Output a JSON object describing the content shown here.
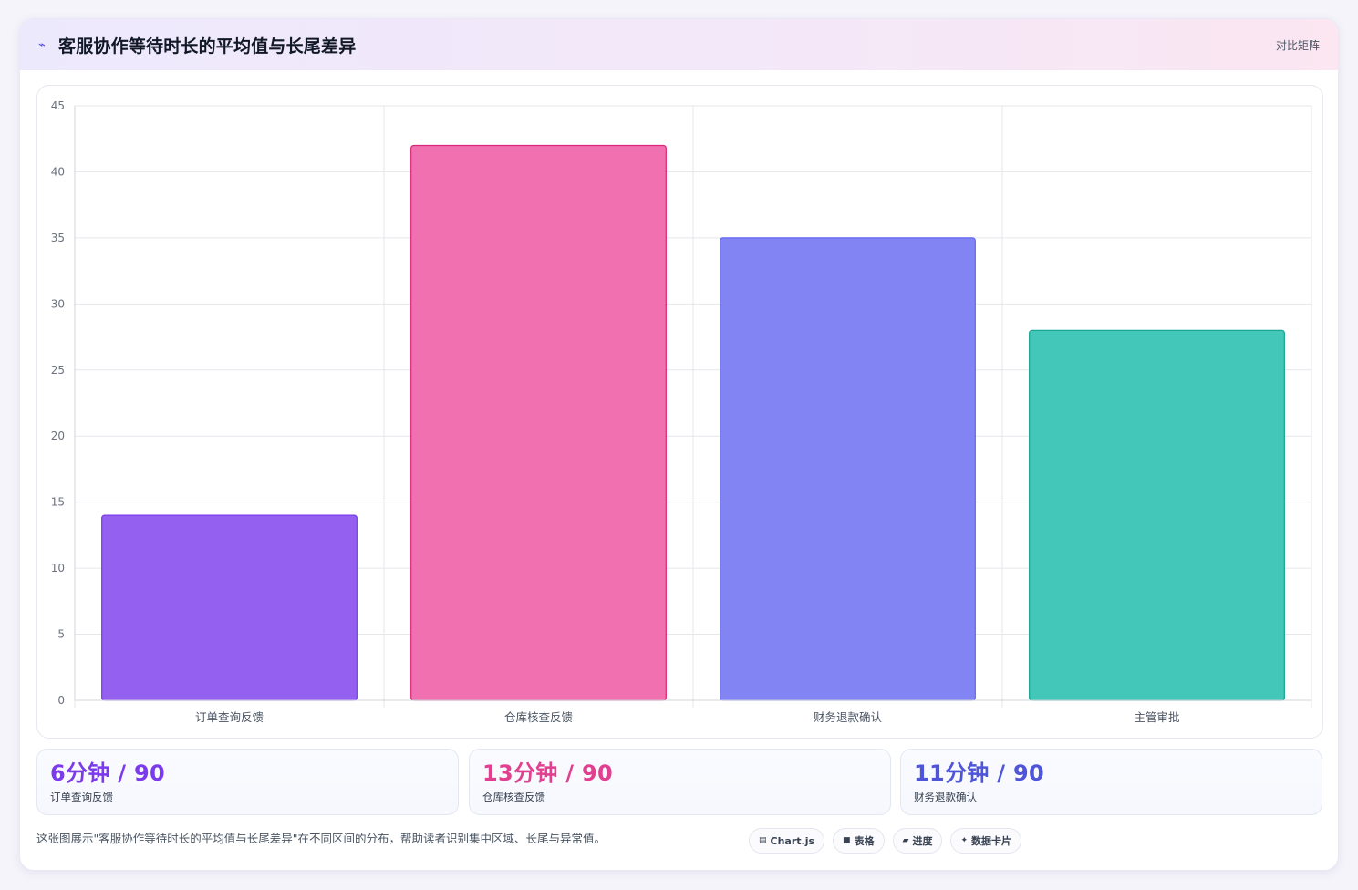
{
  "header": {
    "icon": "trend-line-icon",
    "title": "客服协作等待时长的平均值与长尾差异",
    "action_label": "对比矩阵"
  },
  "chart_data": {
    "type": "bar",
    "title": "",
    "xlabel": "",
    "ylabel": "",
    "categories": [
      "订单查询反馈",
      "仓库核查反馈",
      "财务退款确认",
      "主管审批"
    ],
    "values": [
      14,
      42,
      35,
      28
    ],
    "ylim": [
      0,
      45
    ],
    "yticks": [
      0,
      5,
      10,
      15,
      20,
      25,
      30,
      35,
      40,
      45
    ],
    "grid": true,
    "legend": "none",
    "colors": [
      "#9360f0",
      "#f070b0",
      "#8184f2",
      "#43c7b8"
    ],
    "border_colors": [
      "#7c3aed",
      "#db2777",
      "#6366f1",
      "#14a38f"
    ]
  },
  "stats": [
    {
      "value": "6分钟 / 90",
      "label": "订单查询反馈",
      "color": "#7c3aed"
    },
    {
      "value": "13分钟 / 90",
      "label": "仓库核查反馈",
      "color": "#e0408f"
    },
    {
      "value": "11分钟 / 90",
      "label": "财务退款确认",
      "color": "#4f55d9"
    }
  ],
  "footer": {
    "description": "这张图展示\"客服协作等待时长的平均值与长尾差异\"在不同区间的分布，帮助读者识别集中区域、长尾与异常值。"
  },
  "tags": [
    {
      "icon": "chart-icon",
      "glyph": "▤",
      "label": "Chart.js"
    },
    {
      "icon": "table-icon",
      "glyph": "■",
      "label": "表格"
    },
    {
      "icon": "progress-icon",
      "glyph": "▰",
      "label": "进度"
    },
    {
      "icon": "sparkle-icon",
      "glyph": "✦",
      "label": "数据卡片"
    }
  ]
}
